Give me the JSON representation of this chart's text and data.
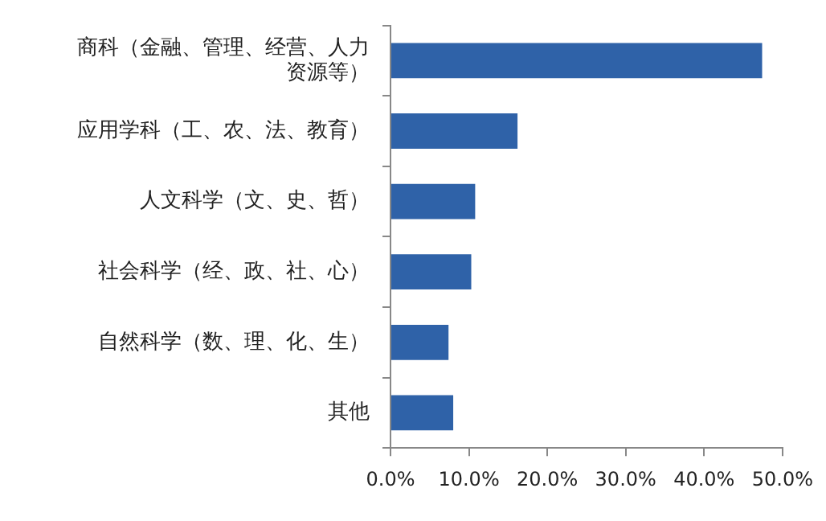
{
  "chart_data": {
    "type": "bar",
    "orientation": "horizontal",
    "categories": [
      "商科（金融、管理、经营、人力资源等）",
      "应用学科（工、农、法、教育）",
      "人文科学（文、史、哲）",
      "社会科学（经、政、社、心）",
      "自然科学（数、理、化、生）",
      "其他"
    ],
    "values": [
      47.4,
      16.2,
      10.8,
      10.3,
      7.4,
      8.0
    ],
    "color": "#2f62a8",
    "xlim": [
      0,
      50
    ],
    "xticks": [
      {
        "value": 0,
        "label": "0.0%"
      },
      {
        "value": 10,
        "label": "10.0%"
      },
      {
        "value": 20,
        "label": "20.0%"
      },
      {
        "value": 30,
        "label": "30.0%"
      },
      {
        "value": 40,
        "label": "40.0%"
      },
      {
        "value": 50,
        "label": "50.0%"
      }
    ],
    "grid": false,
    "legend": false
  }
}
